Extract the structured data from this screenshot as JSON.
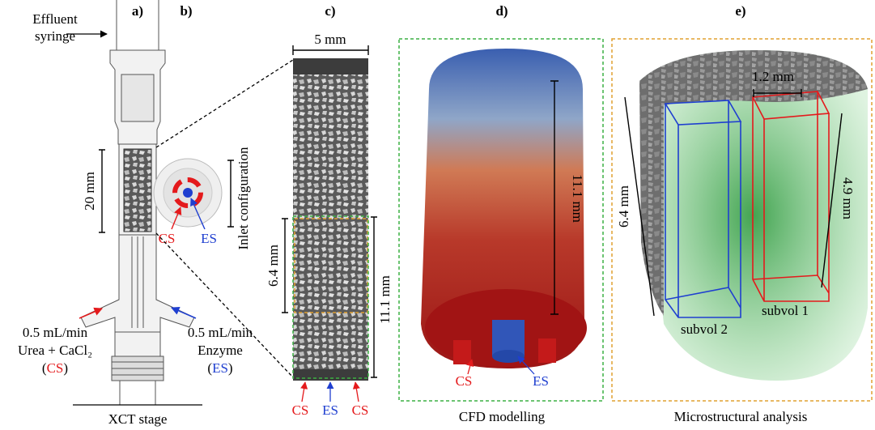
{
  "panel_a": {
    "label": "a)",
    "effluent": [
      "Effluent",
      "syringe"
    ],
    "length": "20 mm",
    "inlet_cs": {
      "rate": "0.5 mL/min",
      "solution": "Urea + CaCl₂",
      "code": [
        "(",
        "CS",
        ")"
      ]
    },
    "inlet_es": {
      "rate": "0.5 mL/min",
      "solution": "Enzyme",
      "code": [
        "(",
        "ES",
        ")"
      ]
    },
    "stage": "XCT stage"
  },
  "panel_b": {
    "label": "b)",
    "cs": "CS",
    "es": "ES",
    "caption": "Inlet configuration"
  },
  "panel_c": {
    "label": "c)",
    "width": "5 mm",
    "subvolume_height": "6.4 mm",
    "domain_height": "11.1 mm",
    "inlets": [
      "CS",
      "ES",
      "CS"
    ]
  },
  "panel_d": {
    "label": "d)",
    "height": "11.1 mm",
    "cs": "CS",
    "es": "ES",
    "caption": "CFD modelling"
  },
  "panel_e": {
    "label": "e)",
    "width": "1.2 mm",
    "subvol_2_height": "6.4 mm",
    "subvol_1_height": "4.9 mm",
    "subvol_2": "subvol 2",
    "subvol_1": "subvol 1",
    "caption": "Microstructural analysis"
  }
}
